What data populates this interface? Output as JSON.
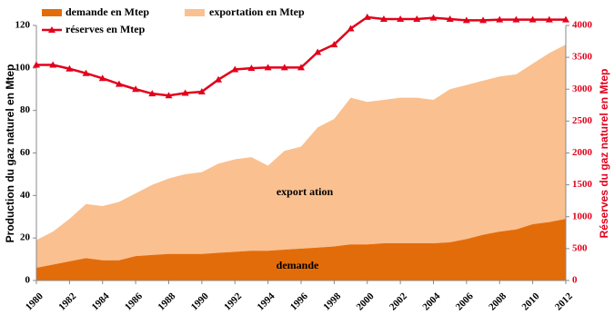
{
  "chart_data": {
    "type": "stacked-area-line",
    "y_label": "Production du gaz naturel en Mtep",
    "y2_label": "Réserves  du gaz naturel en   Mtep",
    "annotations": [
      "export ation",
      "demande"
    ],
    "x": [
      1980,
      1981,
      1982,
      1983,
      1984,
      1985,
      1986,
      1987,
      1988,
      1989,
      1990,
      1991,
      1992,
      1993,
      1994,
      1995,
      1996,
      1997,
      1998,
      1999,
      2000,
      2001,
      2002,
      2003,
      2004,
      2005,
      2006,
      2007,
      2008,
      2009,
      2010,
      2011,
      2012
    ],
    "xlim": [
      1980,
      2012
    ],
    "xticks": [
      1980,
      1982,
      1984,
      1986,
      1988,
      1990,
      1992,
      1994,
      1996,
      1998,
      2000,
      2002,
      2004,
      2006,
      2008,
      2010,
      2012
    ],
    "ylim": [
      0,
      120
    ],
    "yticks": [
      0,
      20,
      40,
      60,
      80,
      100,
      120
    ],
    "y2lim": [
      0,
      4000
    ],
    "y2ticks": [
      0,
      500,
      1000,
      1500,
      2000,
      2500,
      3000,
      3500,
      4000
    ],
    "series": [
      {
        "name": "demande en Mtep",
        "color": "#e36c0a",
        "values": [
          6,
          7.5,
          9,
          10.5,
          9.5,
          9.5,
          11.5,
          12,
          12.5,
          12.5,
          12.5,
          13,
          13.5,
          14,
          14,
          14.5,
          15,
          15.5,
          16,
          17,
          17,
          17.5,
          17.5,
          17.5,
          17.5,
          18,
          19.5,
          21.5,
          23,
          24,
          26.5,
          27.5,
          29
        ]
      },
      {
        "name": "exportation en Mtep",
        "color": "#fac090",
        "values": [
          13,
          15.5,
          20,
          25.5,
          25.5,
          27.5,
          29.5,
          33,
          35.5,
          37.5,
          38.5,
          42,
          43.5,
          44,
          40,
          46.5,
          48,
          56.5,
          60,
          69,
          67,
          67.5,
          68.5,
          68.5,
          67.5,
          72,
          72.5,
          72.5,
          73,
          73,
          75.5,
          79.5,
          82
        ]
      },
      {
        "name": "réserves en Mtep",
        "color": "#e3001b",
        "axis": "y2",
        "values": [
          3380,
          3380,
          3320,
          3250,
          3170,
          3080,
          3000,
          2930,
          2900,
          2940,
          2960,
          3150,
          3310,
          3330,
          3340,
          3340,
          3340,
          3580,
          3700,
          3950,
          4130,
          4100,
          4100,
          4100,
          4120,
          4100,
          4080,
          4080,
          4090,
          4090,
          4090,
          4090,
          4090
        ]
      }
    ]
  }
}
